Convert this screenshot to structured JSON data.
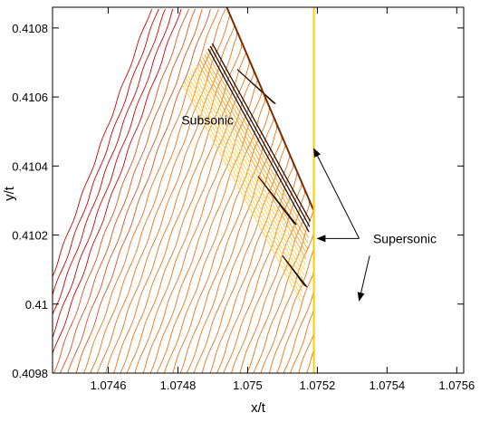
{
  "chart_data": {
    "type": "contour",
    "xlabel": "x/t",
    "ylabel": "y/t",
    "xlim": [
      1.07444,
      1.07562
    ],
    "ylim": [
      0.4098,
      0.41086
    ],
    "xticks": [
      {
        "value": 1.0746,
        "label": "1.0746"
      },
      {
        "value": 1.0748,
        "label": "1.0748"
      },
      {
        "value": 1.075,
        "label": "1.075"
      },
      {
        "value": 1.0752,
        "label": "1.0752"
      },
      {
        "value": 1.0754,
        "label": "1.0754"
      },
      {
        "value": 1.0756,
        "label": "1.0756"
      }
    ],
    "yticks": [
      {
        "value": 0.4098,
        "label": "0.4098"
      },
      {
        "value": 0.41,
        "label": "0.41"
      },
      {
        "value": 0.4102,
        "label": "0.4102"
      },
      {
        "value": 0.4104,
        "label": "0.4104"
      },
      {
        "value": 0.4106,
        "label": "0.4106"
      },
      {
        "value": 0.4108,
        "label": "0.4108"
      }
    ],
    "grid": false,
    "colors": {
      "low": "#cc0000",
      "mid": "#e8731a",
      "high": "#f7a823",
      "peak": "#ffd24a",
      "dark": "#2a1000",
      "boundary": "#ffcc00"
    },
    "interface_x": 1.07519,
    "shock_line": [
      [
        1.07494,
        0.41086
      ],
      [
        1.07519,
        0.41027
      ]
    ],
    "annotations": [
      {
        "text": "Subsonic",
        "x": 1.07481,
        "y": 0.41052
      },
      {
        "text": "Supersonic",
        "x": 1.07536,
        "y": 0.41019
      }
    ],
    "arrows": [
      {
        "from": [
          1.07532,
          0.41019
        ],
        "to": [
          1.07519,
          0.41045
        ]
      },
      {
        "from": [
          1.07532,
          0.41019
        ],
        "to": [
          1.0752,
          0.41019
        ]
      },
      {
        "from": [
          1.07535,
          0.41014
        ],
        "to": [
          1.07532,
          0.41001
        ]
      }
    ]
  }
}
